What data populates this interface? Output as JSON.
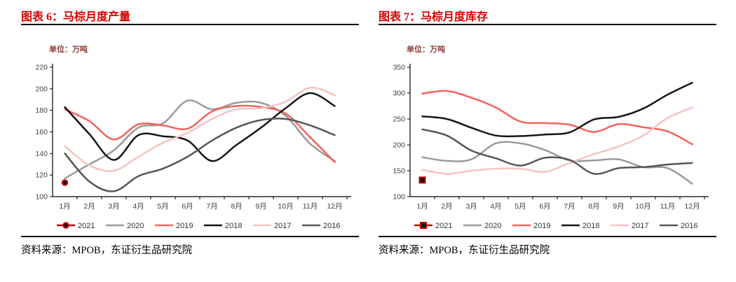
{
  "chart_data": [
    {
      "id": "production",
      "type": "line",
      "title": "图表 6：马棕月度产量",
      "unit_label": "单位：万吨",
      "source": "资料来源：MPOB，东证衍生品研究院",
      "categories": [
        "1月",
        "2月",
        "3月",
        "4月",
        "5月",
        "6月",
        "7月",
        "8月",
        "9月",
        "10月",
        "11月",
        "12月"
      ],
      "ylim": [
        100,
        220
      ],
      "ytick_step": 20,
      "yticks": [
        100,
        120,
        140,
        160,
        180,
        200,
        220
      ],
      "grid": false,
      "legend_position": "bottom",
      "series": [
        {
          "name": "2021",
          "color": "#C00000",
          "marker": "circle",
          "marker_fill": "#111111",
          "values": [
            113
          ]
        },
        {
          "name": "2020",
          "color": "#9A9A9A",
          "values": [
            117,
            130,
            143,
            164,
            168,
            189,
            181,
            187,
            187,
            175,
            149,
            133
          ]
        },
        {
          "name": "2019",
          "color": "#F4625C",
          "values": [
            181,
            170,
            153,
            167,
            166,
            163,
            179,
            184,
            183,
            177,
            155,
            132
          ]
        },
        {
          "name": "2018",
          "color": "#151515",
          "values": [
            183,
            158,
            134,
            157,
            156,
            152,
            133,
            148,
            164,
            182,
            196,
            184
          ]
        },
        {
          "name": "2017",
          "color": "#F6C3C1",
          "values": [
            147,
            129,
            124,
            137,
            150,
            159,
            172,
            181,
            182,
            188,
            201,
            194
          ]
        },
        {
          "name": "2016",
          "color": "#565656",
          "values": [
            140,
            114,
            105,
            119,
            126,
            137,
            152,
            164,
            171,
            172,
            166,
            157
          ]
        }
      ]
    },
    {
      "id": "inventory",
      "type": "line",
      "title": "图表 7：马棕月度库存",
      "unit_label": "单位：万吨",
      "source": "资料来源：MPOB，东证衍生品研究院",
      "categories": [
        "1月",
        "2月",
        "3月",
        "4月",
        "5月",
        "6月",
        "7月",
        "8月",
        "9月",
        "10月",
        "11月",
        "12月"
      ],
      "ylim": [
        100,
        350
      ],
      "ytick_step": 50,
      "yticks": [
        100,
        150,
        200,
        250,
        300,
        350
      ],
      "grid": false,
      "legend_position": "bottom",
      "series": [
        {
          "name": "2021",
          "color": "#C00000",
          "marker": "square",
          "marker_fill": "#111111",
          "values": [
            132
          ]
        },
        {
          "name": "2020",
          "color": "#9A9A9A",
          "values": [
            176,
            169,
            172,
            203,
            203,
            190,
            170,
            170,
            172,
            157,
            155,
            125
          ]
        },
        {
          "name": "2019",
          "color": "#F4625C",
          "values": [
            299,
            304,
            291,
            272,
            245,
            242,
            239,
            225,
            240,
            234,
            226,
            201
          ]
        },
        {
          "name": "2018",
          "color": "#151515",
          "values": [
            255,
            250,
            233,
            218,
            217,
            220,
            224,
            249,
            254,
            270,
            297,
            320
          ]
        },
        {
          "name": "2017",
          "color": "#F6C3C1",
          "values": [
            152,
            144,
            150,
            154,
            154,
            148,
            165,
            182,
            197,
            218,
            252,
            272
          ]
        },
        {
          "name": "2016",
          "color": "#565656",
          "values": [
            230,
            218,
            189,
            174,
            160,
            175,
            171,
            144,
            155,
            157,
            162,
            165
          ]
        }
      ]
    }
  ]
}
